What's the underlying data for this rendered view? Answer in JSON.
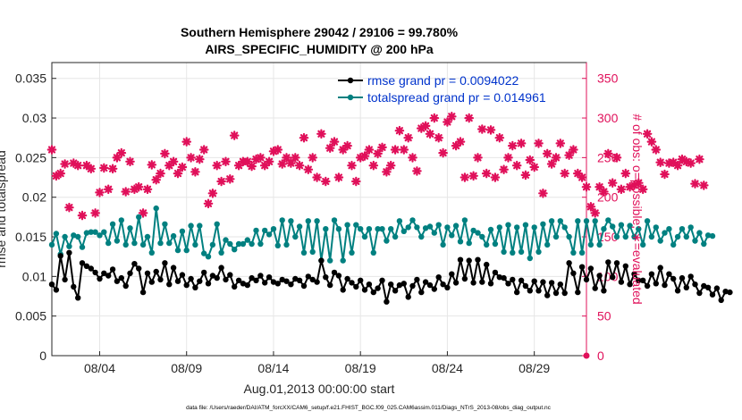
{
  "chart_data": {
    "type": "line",
    "title": "Southern Hemisphere 29042 / 29106 = 99.780%",
    "subtitle": "AIRS_SPECIFIC_HUMIDITY @ 200 hPa",
    "xlabel": "Aug.01,2013 00:00:00 start",
    "ylabel_left": "rmse and totalspread",
    "ylabel_right": "# of obs: o=possible; ∗=evaluated",
    "footer": "data file: /Users/raeder/DAI/ATM_forcXX/CAM6_setup/f.e21.FHIST_BGC.f09_025.CAM6assim.011/Diags_NTrS_2013-08/obs_diag_output.nc",
    "legend_position": "top-right",
    "grid": true,
    "x_day_range": [
      1.25,
      32.0
    ],
    "x_ticks": [
      {
        "day": 4,
        "label": "08/04"
      },
      {
        "day": 9,
        "label": "08/09"
      },
      {
        "day": 14,
        "label": "08/14"
      },
      {
        "day": 19,
        "label": "08/19"
      },
      {
        "day": 24,
        "label": "08/24"
      },
      {
        "day": 29,
        "label": "08/29"
      }
    ],
    "ylim_left": [
      0,
      0.037
    ],
    "yticks_left": [
      "0",
      "0.005",
      "0.01",
      "0.015",
      "0.02",
      "0.025",
      "0.03",
      "0.035"
    ],
    "ylim_right": [
      0,
      370
    ],
    "yticks_right": [
      "0",
      "50",
      "100",
      "150",
      "200",
      "250",
      "300",
      "350"
    ],
    "colors": {
      "rmse": "#000000",
      "totalspread": "#008080",
      "obs": "#e0105a",
      "legend_text": "#0033cc"
    },
    "series": [
      {
        "name": "rmse grand pr = 0.0094022",
        "color": "#000000",
        "x_start_day": 1.25,
        "x_step_day": 0.25,
        "values": [
          0.009,
          0.0083,
          0.0126,
          0.0096,
          0.013,
          0.0087,
          0.0073,
          0.0117,
          0.0113,
          0.011,
          0.0105,
          0.0097,
          0.0104,
          0.0101,
          0.0109,
          0.0094,
          0.0098,
          0.0088,
          0.0104,
          0.0116,
          0.011,
          0.008,
          0.0104,
          0.0093,
          0.0106,
          0.0096,
          0.0117,
          0.009,
          0.0111,
          0.0094,
          0.0102,
          0.0089,
          0.0097,
          0.0086,
          0.0094,
          0.0105,
          0.0091,
          0.0101,
          0.0098,
          0.0111,
          0.0096,
          0.0102,
          0.0087,
          0.0095,
          0.0091,
          0.0089,
          0.0098,
          0.0095,
          0.0101,
          0.0092,
          0.0099,
          0.0093,
          0.0091,
          0.0096,
          0.0094,
          0.009,
          0.0097,
          0.0095,
          0.0088,
          0.01,
          0.0096,
          0.0093,
          0.012,
          0.0099,
          0.0089,
          0.0105,
          0.0101,
          0.0083,
          0.0097,
          0.0092,
          0.0087,
          0.0095,
          0.0083,
          0.009,
          0.008,
          0.0085,
          0.0095,
          0.0068,
          0.009,
          0.0082,
          0.0089,
          0.0091,
          0.0074,
          0.0088,
          0.0096,
          0.008,
          0.0093,
          0.0089,
          0.0084,
          0.0099,
          0.009,
          0.0086,
          0.0103,
          0.0092,
          0.0121,
          0.0097,
          0.012,
          0.0092,
          0.0121,
          0.0093,
          0.0115,
          0.0091,
          0.0105,
          0.0099,
          0.0098,
          0.0091,
          0.0096,
          0.008,
          0.0095,
          0.0088,
          0.0082,
          0.0094,
          0.0082,
          0.0093,
          0.0076,
          0.0092,
          0.0079,
          0.009,
          0.0079,
          0.0117,
          0.0104,
          0.008,
          0.0112,
          0.0096,
          0.011,
          0.0085,
          0.0101,
          0.0082,
          0.0118,
          0.0099,
          0.0117,
          0.0093,
          0.0113,
          0.009,
          0.0103,
          0.0095,
          0.0095,
          0.0088,
          0.0103,
          0.0091,
          0.0111,
          0.0089,
          0.0103,
          0.0097,
          0.0082,
          0.0098,
          0.0086,
          0.01,
          0.009,
          0.0079,
          0.0088,
          0.0086,
          0.0077,
          0.0085,
          0.007,
          0.0081,
          0.008
        ]
      },
      {
        "name": "totalspread grand pr = 0.014961",
        "color": "#008080",
        "x_start_day": 1.25,
        "x_step_day": 0.25,
        "values": [
          0.014,
          0.0154,
          0.0128,
          0.015,
          0.0138,
          0.0152,
          0.015,
          0.0137,
          0.0155,
          0.0156,
          0.0156,
          0.0152,
          0.0156,
          0.0142,
          0.0166,
          0.0145,
          0.0171,
          0.014,
          0.0161,
          0.0142,
          0.0175,
          0.014,
          0.015,
          0.013,
          0.0186,
          0.0142,
          0.0166,
          0.0142,
          0.0151,
          0.0133,
          0.0157,
          0.0133,
          0.0164,
          0.014,
          0.0164,
          0.0129,
          0.0125,
          0.014,
          0.0166,
          0.013,
          0.0146,
          0.0141,
          0.0134,
          0.0141,
          0.0141,
          0.0146,
          0.0141,
          0.0158,
          0.0141,
          0.0158,
          0.0153,
          0.016,
          0.0139,
          0.0171,
          0.014,
          0.017,
          0.015,
          0.0163,
          0.013,
          0.017,
          0.0131,
          0.017,
          0.012,
          0.016,
          0.012,
          0.0171,
          0.016,
          0.012,
          0.0165,
          0.013,
          0.0165,
          0.016,
          0.015,
          0.016,
          0.013,
          0.016,
          0.016,
          0.0145,
          0.016,
          0.015,
          0.017,
          0.0157,
          0.0162,
          0.0171,
          0.0162,
          0.015,
          0.0161,
          0.0163,
          0.0155,
          0.0165,
          0.014,
          0.0162,
          0.0152,
          0.0164,
          0.0144,
          0.0171,
          0.0142,
          0.0158,
          0.0155,
          0.015,
          0.014,
          0.0159,
          0.0141,
          0.0162,
          0.0131,
          0.0165,
          0.013,
          0.0162,
          0.0131,
          0.0165,
          0.0123,
          0.0162,
          0.0131,
          0.0166,
          0.014,
          0.017,
          0.015,
          0.017,
          0.0162,
          0.015,
          0.013,
          0.017,
          0.013,
          0.017,
          0.014,
          0.017,
          0.014,
          0.016,
          0.0171,
          0.0163,
          0.015,
          0.0165,
          0.015,
          0.0164,
          0.015,
          0.016,
          0.014,
          0.017,
          0.015,
          0.0162,
          0.0145,
          0.0155,
          0.016,
          0.014,
          0.015,
          0.016,
          0.015,
          0.0162,
          0.0145,
          0.0155,
          0.0141,
          0.0152,
          0.0151
        ]
      },
      {
        "name": "# of obs evaluated",
        "color": "#e0105a",
        "axis": "right",
        "x_start_day": 1.25,
        "x_step_day": 0.25,
        "values": [
          260,
          227,
          230,
          242,
          187,
          243,
          240,
          177,
          240,
          236,
          180,
          206,
          237,
          210,
          236,
          250,
          256,
          207,
          245,
          210,
          213,
          180,
          210,
          241,
          222,
          230,
          255,
          240,
          245,
          230,
          238,
          270,
          250,
          232,
          248,
          260,
          192,
          205,
          240,
          220,
          245,
          223,
          278,
          240,
          245,
          245,
          239,
          248,
          250,
          240,
          245,
          258,
          260,
          242,
          250,
          243,
          250,
          240,
          275,
          235,
          250,
          225,
          280,
          220,
          262,
          270,
          225,
          260,
          265,
          240,
          220,
          250,
          252,
          260,
          240,
          255,
          263,
          232,
          240,
          260,
          284,
          260,
          275,
          250,
          233,
          287,
          290,
          280,
          300,
          275,
          256,
          295,
          302,
          265,
          270,
          225,
          300,
          227,
          250,
          286,
          230,
          285,
          225,
          275,
          235,
          250,
          265,
          240,
          268,
          228,
          247,
          238,
          268,
          205,
          255,
          242,
          250,
          268,
          230,
          253,
          260,
          230,
          225,
          213,
          188,
          180,
          213,
          207,
          255,
          218,
          250,
          210,
          230,
          213,
          215,
          218,
          210,
          280,
          270,
          260,
          244,
          229,
          243,
          244,
          240,
          248,
          245,
          243,
          217,
          248,
          215
        ]
      },
      {
        "name": "# of obs possible",
        "color": "#e0105a",
        "axis": "right",
        "values": [
          0
        ]
      }
    ]
  }
}
